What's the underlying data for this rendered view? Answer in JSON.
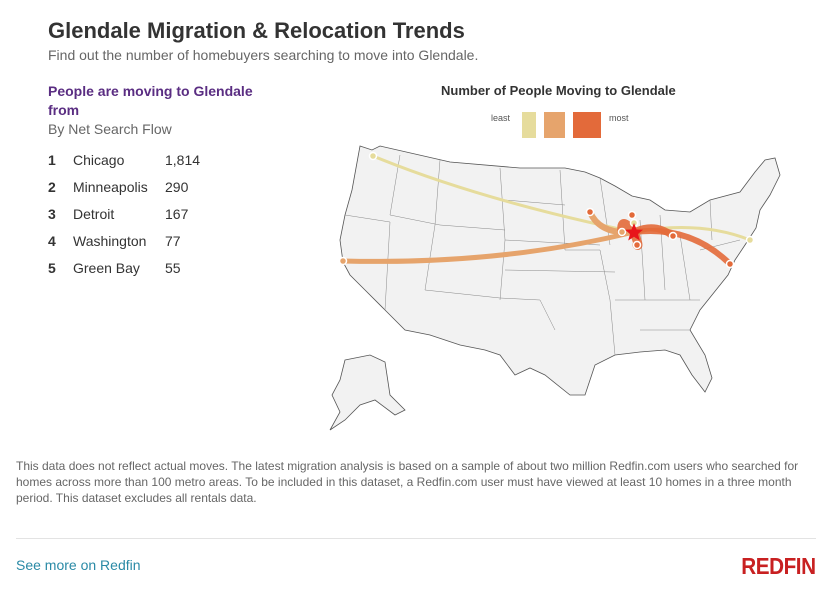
{
  "header": {
    "title": "Glendale Migration & Relocation Trends",
    "subtitle": "Find out the number of homebuyers searching to move into Glendale."
  },
  "list": {
    "title": "People are moving to Glendale from",
    "subtitle": "By Net Search Flow",
    "items": [
      {
        "rank": "1",
        "city": "Chicago",
        "value": "1,814"
      },
      {
        "rank": "2",
        "city": "Minneapolis",
        "value": "290"
      },
      {
        "rank": "3",
        "city": "Detroit",
        "value": "167"
      },
      {
        "rank": "4",
        "city": "Washington",
        "value": "77"
      },
      {
        "rank": "5",
        "city": "Green Bay",
        "value": "55"
      }
    ]
  },
  "map": {
    "title": "Number of People Moving to Glendale",
    "legend": {
      "least": "least",
      "most": "most",
      "colors": [
        "#e6dc9c",
        "#e6a46c",
        "#e36a3a"
      ]
    },
    "destination_color": "#e8151b"
  },
  "note": "This data does not reflect actual moves. The latest migration analysis is based on a sample of about two million Redfin.com users who searched for homes across more than 100 metro areas. To be included in this dataset, a Redfin.com user must have viewed at least 10 homes in a three month period. This dataset excludes all rentals data.",
  "footer": {
    "link": "See more on Redfin",
    "logo": "REDFIN"
  }
}
